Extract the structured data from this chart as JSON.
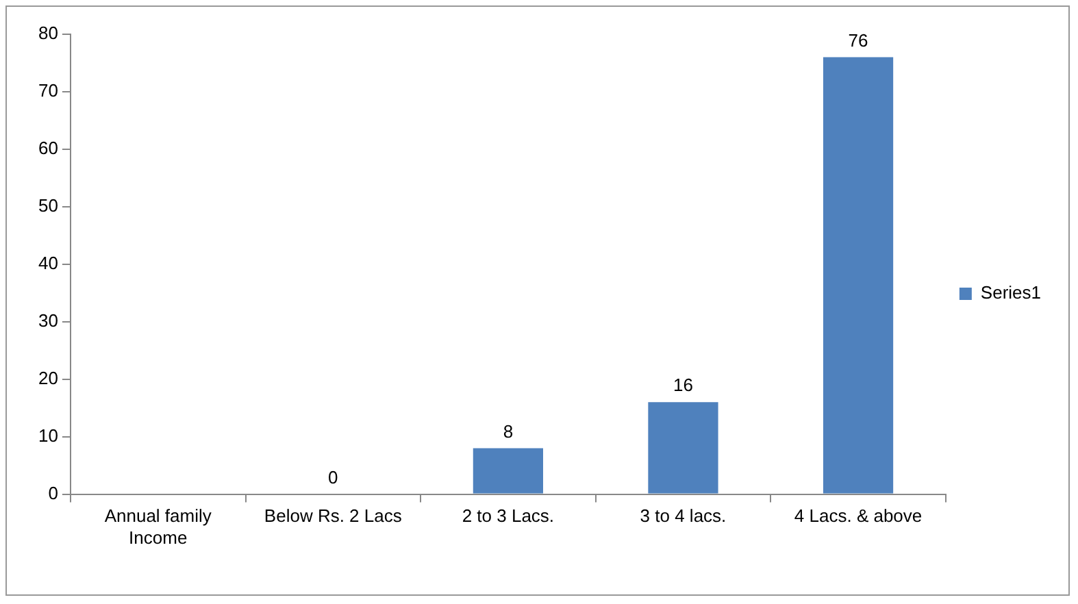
{
  "chart_data": {
    "type": "bar",
    "categories": [
      "Annual family Income",
      "Below Rs. 2 Lacs",
      "2 to 3 Lacs.",
      "3 to 4 lacs.",
      "4 Lacs. & above"
    ],
    "series": [
      {
        "name": "Series1",
        "color": "#4f81bd",
        "values": [
          null,
          0,
          8,
          16,
          76
        ]
      }
    ],
    "ylim": [
      0,
      80
    ],
    "yticks": [
      0,
      10,
      20,
      30,
      40,
      50,
      60,
      70,
      80
    ],
    "grid": false,
    "legend": "right",
    "data_labels": true
  }
}
